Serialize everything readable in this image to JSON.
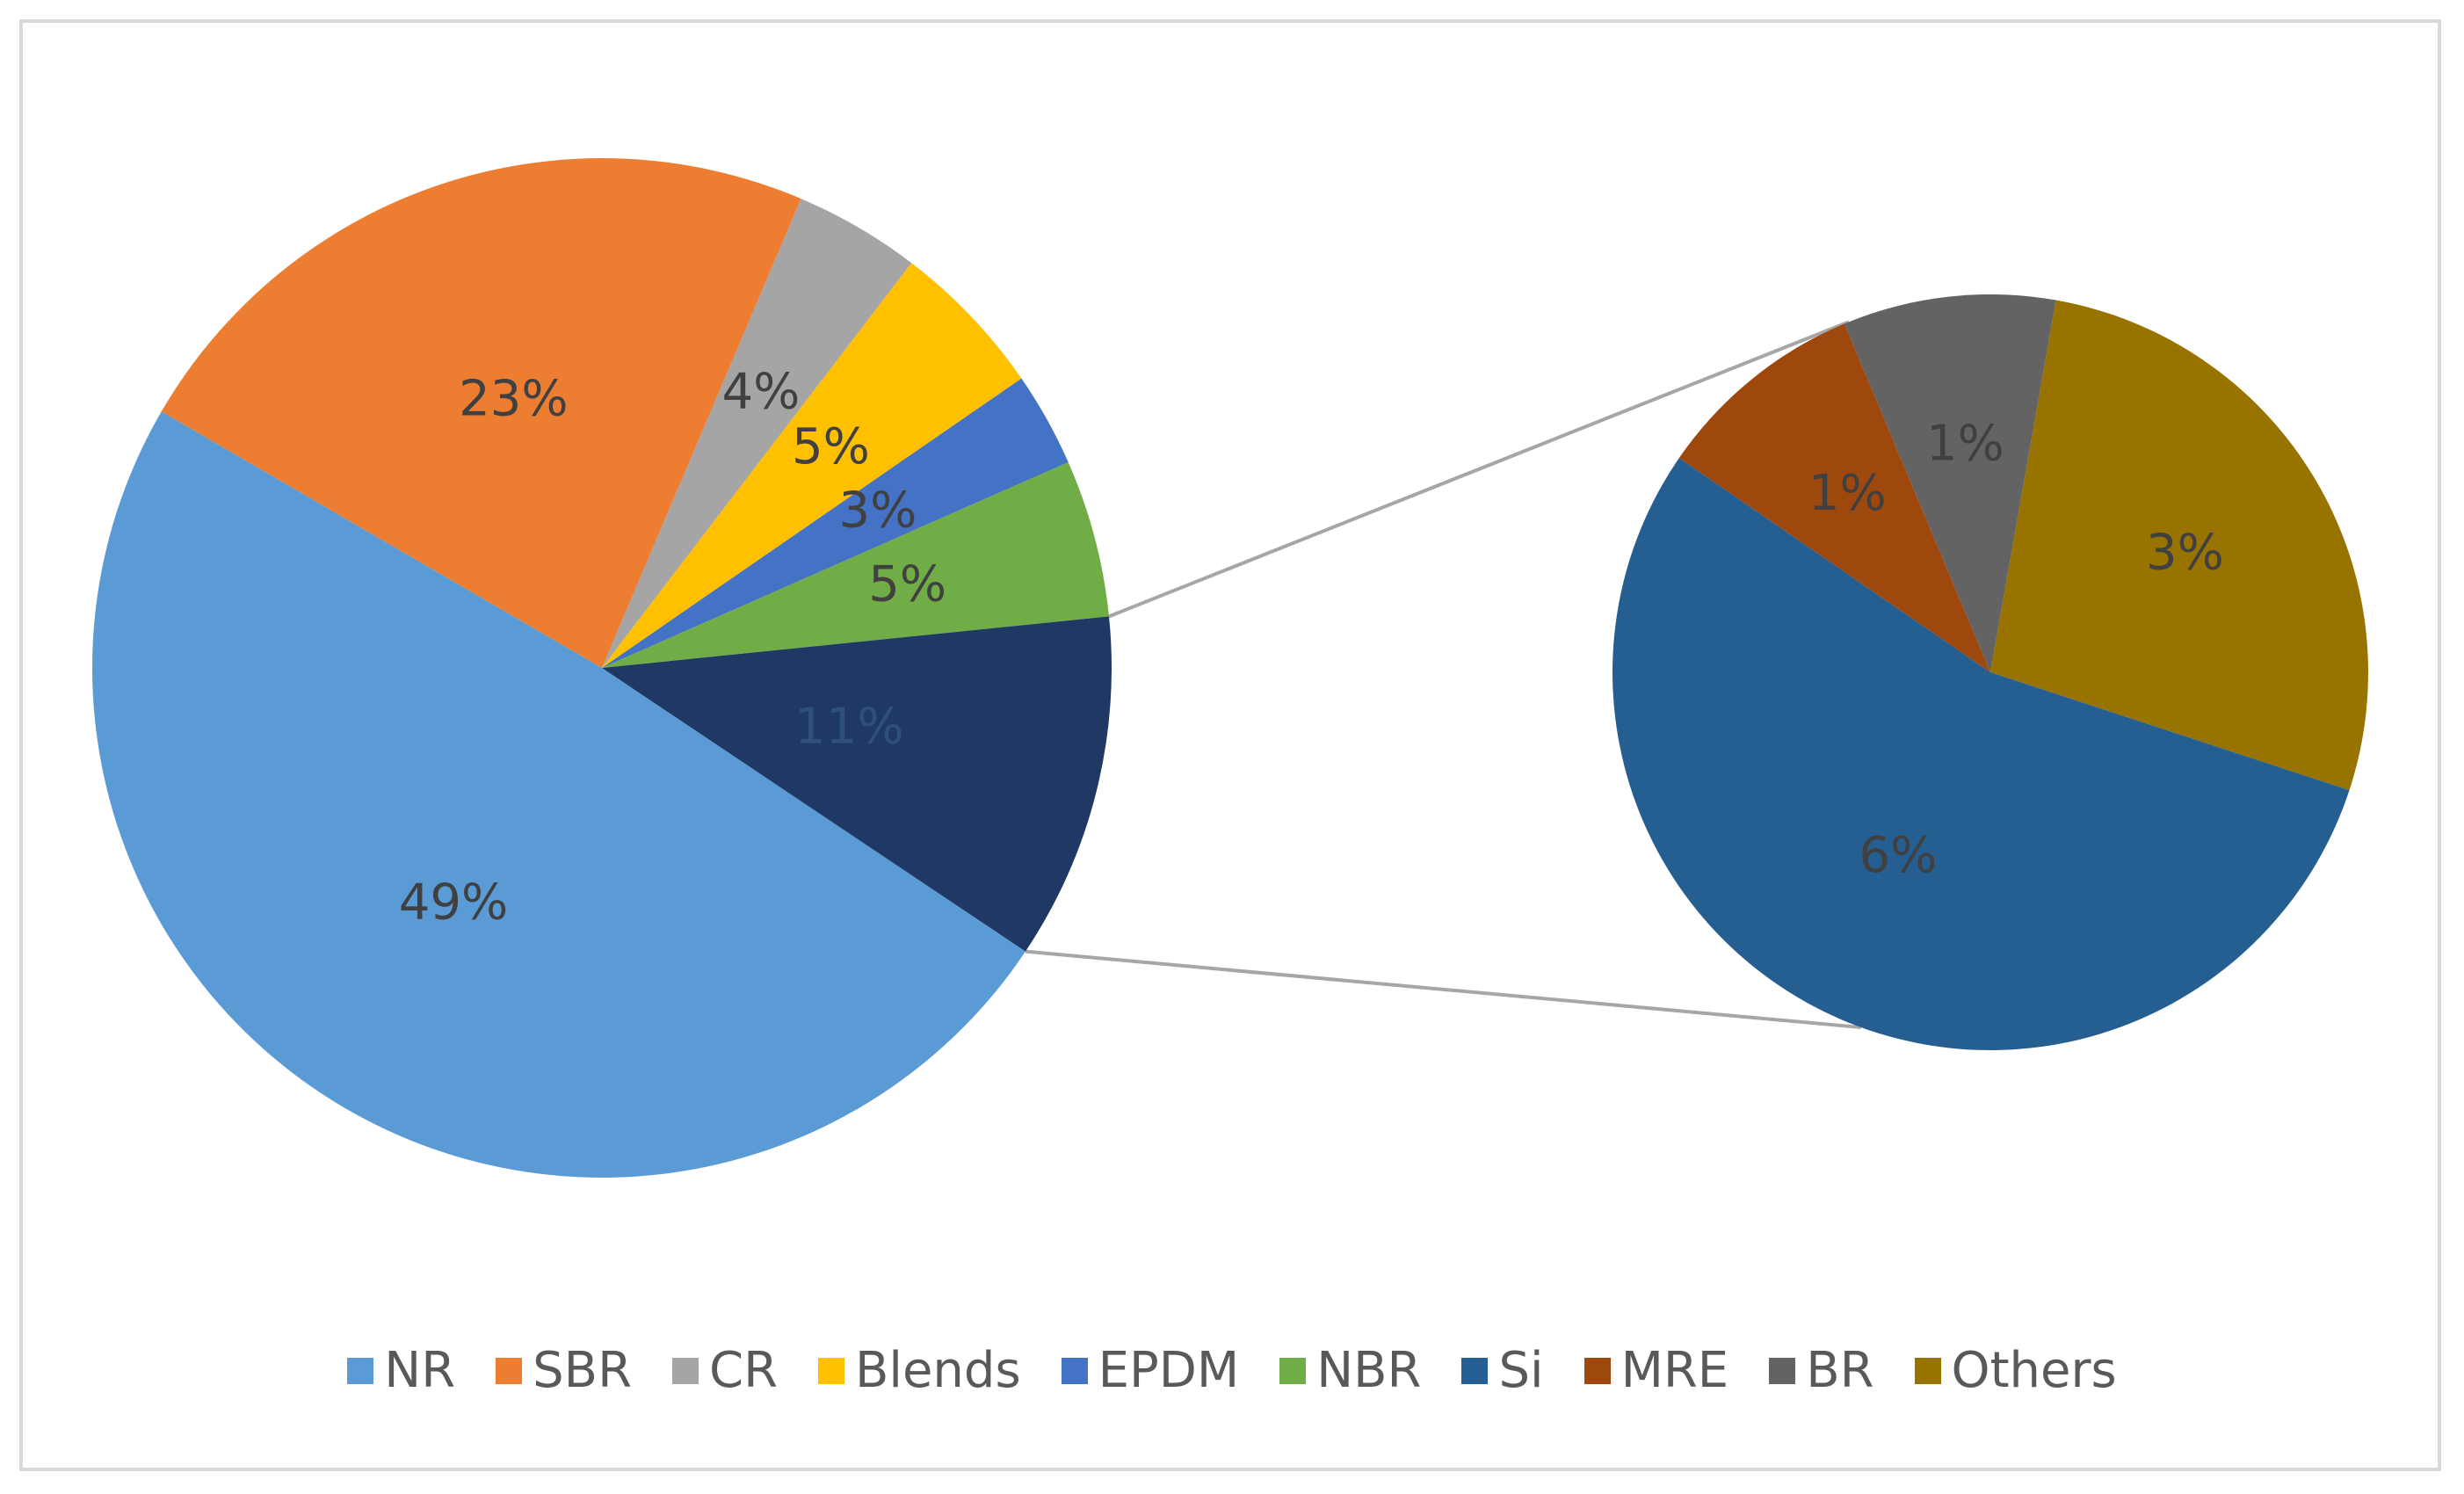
{
  "chart_data": {
    "type": "pie",
    "subtype": "pie-of-pie",
    "categories": [
      "NR",
      "SBR",
      "CR",
      "Blends",
      "EPDM",
      "NBR",
      "Si",
      "MRE",
      "BR",
      "Others"
    ],
    "values": [
      49,
      23,
      4,
      5,
      3,
      5,
      6,
      1,
      1,
      3
    ],
    "labels": [
      "49%",
      "23%",
      "4%",
      "5%",
      "3%",
      "5%",
      "6%",
      "1%",
      "1%",
      "3%"
    ],
    "other_label": "11%",
    "colors": [
      "#5b9bd5",
      "#ed7d31",
      "#a5a5a5",
      "#ffc000",
      "#4472c4",
      "#70ad47",
      "#255e91",
      "#9e480e",
      "#636363",
      "#997300"
    ],
    "legend_position": "bottom",
    "title": ""
  }
}
